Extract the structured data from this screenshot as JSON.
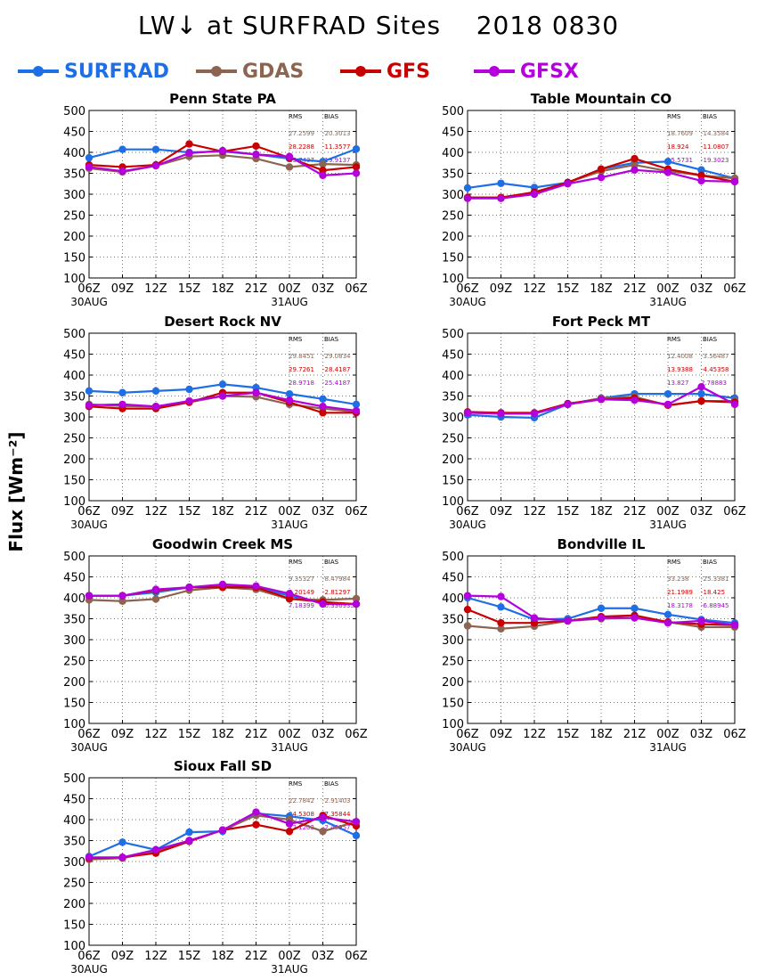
{
  "header": {
    "title": "LW↓ at SURFRAD Sites    2018 0830"
  },
  "legend": [
    {
      "name": "SURFRAD",
      "color": "#1e6ee6"
    },
    {
      "name": "GDAS",
      "color": "#8c6450"
    },
    {
      "name": "GFS",
      "color": "#c80000"
    },
    {
      "name": "GFSX",
      "color": "#b400dc"
    }
  ],
  "ylabel": "Flux [Wm⁻²]",
  "chart_data": [
    {
      "type": "line",
      "title": "Penn State PA",
      "categories": [
        "06Z",
        "09Z",
        "12Z",
        "15Z",
        "18Z",
        "21Z",
        "00Z",
        "03Z",
        "06Z"
      ],
      "date_labels": [
        "30AUG",
        "31AUG"
      ],
      "ylim": [
        100,
        500
      ],
      "yticks": [
        100,
        150,
        200,
        250,
        300,
        350,
        400,
        450,
        500
      ],
      "grid": true,
      "series": [
        {
          "name": "SURFRAD",
          "values": [
            387,
            407,
            407,
            400,
            402,
            395,
            385,
            378,
            408
          ]
        },
        {
          "name": "GDAS",
          "values": [
            362,
            353,
            368,
            390,
            393,
            385,
            365,
            372,
            370
          ]
        },
        {
          "name": "GFS",
          "values": [
            370,
            365,
            370,
            420,
            402,
            415,
            387,
            357,
            365
          ]
        },
        {
          "name": "GFSX",
          "values": [
            365,
            355,
            368,
            398,
            404,
            395,
            390,
            345,
            350
          ]
        }
      ],
      "stats": {
        "rms_label": "RMS",
        "bias_label": "BIAS",
        "rows": [
          [
            "27.2599",
            "-20.3013"
          ],
          [
            "28.2288",
            "-11.3577"
          ],
          [
            "25.7437",
            "-19.9137"
          ]
        ]
      }
    },
    {
      "type": "line",
      "title": "Table Mountain CO",
      "categories": [
        "06Z",
        "09Z",
        "12Z",
        "15Z",
        "18Z",
        "21Z",
        "00Z",
        "03Z",
        "06Z"
      ],
      "date_labels": [
        "30AUG",
        "31AUG"
      ],
      "ylim": [
        100,
        500
      ],
      "yticks": [
        100,
        150,
        200,
        250,
        300,
        350,
        400,
        450,
        500
      ],
      "grid": true,
      "series": [
        {
          "name": "SURFRAD",
          "values": [
            315,
            326,
            316,
            328,
            360,
            375,
            378,
            358,
            338
          ]
        },
        {
          "name": "GDAS",
          "values": [
            292,
            292,
            302,
            328,
            355,
            370,
            355,
            345,
            338
          ]
        },
        {
          "name": "GFS",
          "values": [
            292,
            292,
            305,
            328,
            360,
            385,
            360,
            345,
            330
          ]
        },
        {
          "name": "GFSX",
          "values": [
            290,
            290,
            300,
            325,
            340,
            358,
            352,
            332,
            330
          ]
        }
      ],
      "stats": {
        "rms_label": "RMS",
        "bias_label": "BIAS",
        "rows": [
          [
            "18.7609",
            "-14.3584"
          ],
          [
            "18.924",
            "-11.0807"
          ],
          [
            "15.5731",
            "-19.3023"
          ]
        ]
      }
    },
    {
      "type": "line",
      "title": "Desert Rock NV",
      "categories": [
        "06Z",
        "09Z",
        "12Z",
        "15Z",
        "18Z",
        "21Z",
        "00Z",
        "03Z",
        "06Z"
      ],
      "date_labels": [
        "30AUG",
        "31AUG"
      ],
      "ylim": [
        100,
        500
      ],
      "yticks": [
        100,
        150,
        200,
        250,
        300,
        350,
        400,
        450,
        500
      ],
      "grid": true,
      "series": [
        {
          "name": "SURFRAD",
          "values": [
            362,
            358,
            362,
            366,
            378,
            370,
            355,
            343,
            330
          ]
        },
        {
          "name": "GDAS",
          "values": [
            330,
            326,
            325,
            335,
            350,
            348,
            330,
            320,
            312
          ]
        },
        {
          "name": "GFS",
          "values": [
            325,
            320,
            320,
            335,
            358,
            358,
            335,
            310,
            310
          ]
        },
        {
          "name": "GFSX",
          "values": [
            328,
            330,
            325,
            338,
            350,
            358,
            340,
            325,
            315
          ]
        }
      ],
      "stats": {
        "rms_label": "RMS",
        "bias_label": "BIAS",
        "rows": [
          [
            "29.8451",
            "-29.0834"
          ],
          [
            "29.7261",
            "-28.4187"
          ],
          [
            "28.9718",
            "-25.4187"
          ]
        ]
      }
    },
    {
      "type": "line",
      "title": "Fort Peck MT",
      "categories": [
        "06Z",
        "09Z",
        "12Z",
        "15Z",
        "18Z",
        "21Z",
        "00Z",
        "03Z",
        "06Z"
      ],
      "date_labels": [
        "30AUG",
        "31AUG"
      ],
      "ylim": [
        100,
        500
      ],
      "yticks": [
        100,
        150,
        200,
        250,
        300,
        350,
        400,
        450,
        500
      ],
      "grid": true,
      "series": [
        {
          "name": "SURFRAD",
          "values": [
            305,
            300,
            298,
            330,
            345,
            355,
            355,
            355,
            345
          ]
        },
        {
          "name": "GDAS",
          "values": [
            310,
            308,
            308,
            330,
            345,
            348,
            328,
            338,
            338
          ]
        },
        {
          "name": "GFS",
          "values": [
            312,
            310,
            310,
            332,
            342,
            345,
            328,
            338,
            335
          ]
        },
        {
          "name": "GFSX",
          "values": [
            310,
            308,
            308,
            330,
            342,
            340,
            330,
            372,
            330
          ]
        }
      ],
      "stats": {
        "rms_label": "RMS",
        "bias_label": "BIAS",
        "rows": [
          [
            "12.4008",
            "-3.56487"
          ],
          [
            "13.9388",
            "-4.45358"
          ],
          [
            "13.827",
            "2.78883"
          ]
        ]
      }
    },
    {
      "type": "line",
      "title": "Goodwin Creek MS",
      "categories": [
        "06Z",
        "09Z",
        "12Z",
        "15Z",
        "18Z",
        "21Z",
        "00Z",
        "03Z",
        "06Z"
      ],
      "date_labels": [
        "30AUG",
        "31AUG"
      ],
      "ylim": [
        100,
        500
      ],
      "yticks": [
        100,
        150,
        200,
        250,
        300,
        350,
        400,
        450,
        500
      ],
      "grid": true,
      "series": [
        {
          "name": "SURFRAD",
          "values": [
            405,
            405,
            413,
            425,
            430,
            425,
            405,
            388,
            385
          ]
        },
        {
          "name": "GDAS",
          "values": [
            395,
            392,
            397,
            418,
            425,
            420,
            397,
            395,
            398
          ]
        },
        {
          "name": "GFS",
          "values": [
            405,
            405,
            418,
            425,
            425,
            425,
            398,
            390,
            385
          ]
        },
        {
          "name": "GFSX",
          "values": [
            405,
            405,
            420,
            425,
            432,
            428,
            410,
            385,
            385
          ]
        }
      ],
      "stats": {
        "rms_label": "RMS",
        "bias_label": "BIAS",
        "rows": [
          [
            "9.35327",
            "-8.47984"
          ],
          [
            "9.20149",
            "-2.81297"
          ],
          [
            "7.18399",
            "-0.336935"
          ]
        ]
      }
    },
    {
      "type": "line",
      "title": "Bondville IL",
      "categories": [
        "06Z",
        "09Z",
        "12Z",
        "15Z",
        "18Z",
        "21Z",
        "00Z",
        "03Z",
        "06Z"
      ],
      "date_labels": [
        "30AUG",
        "31AUG"
      ],
      "ylim": [
        100,
        500
      ],
      "yticks": [
        100,
        150,
        200,
        250,
        300,
        350,
        400,
        450,
        500
      ],
      "grid": true,
      "series": [
        {
          "name": "SURFRAD",
          "values": [
            400,
            378,
            348,
            350,
            375,
            375,
            360,
            348,
            340
          ]
        },
        {
          "name": "GDAS",
          "values": [
            333,
            326,
            332,
            345,
            350,
            352,
            342,
            330,
            330
          ]
        },
        {
          "name": "GFS",
          "values": [
            372,
            340,
            340,
            345,
            355,
            358,
            342,
            337,
            335
          ]
        },
        {
          "name": "GFSX",
          "values": [
            405,
            403,
            352,
            345,
            352,
            352,
            340,
            345,
            335
          ]
        }
      ],
      "stats": {
        "rms_label": "RMS",
        "bias_label": "BIAS",
        "rows": [
          [
            "33.238",
            "-25.3381"
          ],
          [
            "21.1989",
            "-18.425"
          ],
          [
            "18.3178",
            "-6.88945"
          ]
        ]
      }
    },
    {
      "type": "line",
      "title": "Sioux Fall SD",
      "categories": [
        "06Z",
        "09Z",
        "12Z",
        "15Z",
        "18Z",
        "21Z",
        "00Z",
        "03Z",
        "06Z"
      ],
      "date_labels": [
        "30AUG",
        "31AUG"
      ],
      "ylim": [
        100,
        500
      ],
      "yticks": [
        100,
        150,
        200,
        250,
        300,
        350,
        400,
        450,
        500
      ],
      "grid": true,
      "series": [
        {
          "name": "SURFRAD",
          "values": [
            312,
            346,
            328,
            370,
            372,
            415,
            408,
            398,
            362
          ]
        },
        {
          "name": "GDAS",
          "values": [
            305,
            308,
            325,
            350,
            375,
            410,
            400,
            372,
            395
          ]
        },
        {
          "name": "GFS",
          "values": [
            308,
            310,
            320,
            348,
            375,
            388,
            372,
            410,
            385
          ]
        },
        {
          "name": "GFSX",
          "values": [
            310,
            310,
            328,
            350,
            375,
            418,
            390,
            405,
            395
          ]
        }
      ],
      "stats": {
        "rms_label": "RMS",
        "bias_label": "BIAS",
        "rows": [
          [
            "22.7842",
            "-2.91403"
          ],
          [
            "24.5308",
            "-7.35844"
          ],
          [
            "22.1203",
            "-2.48957"
          ]
        ]
      }
    }
  ]
}
